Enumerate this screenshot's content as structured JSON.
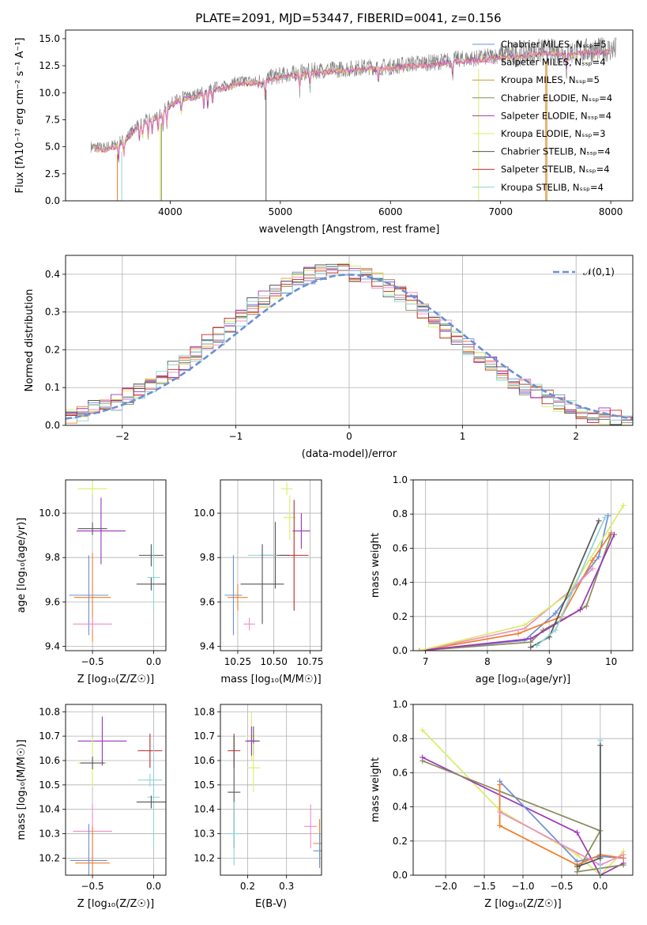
{
  "title": "PLATE=2091, MJD=53447, FIBERID=0041, z=0.156",
  "colors": [
    "#6b8fd6",
    "#f07e2a",
    "#f08cc4",
    "#c79a2b",
    "#8a8a5a",
    "#9b35b5",
    "#d9ec6a",
    "#555555",
    "#c0282a",
    "#8fd3d6"
  ],
  "panel_labels": {
    "spectrum_ylabel": "Flux [fλ10⁻¹⁷ erg cm⁻² s⁻¹ A⁻¹]",
    "spectrum_xlabel": "wavelength [Angstrom, rest frame]",
    "residual_ylabel": "Normed distribution",
    "residual_xlabel": "(data-model)/error",
    "age_ylabel": "age  [log₁₀(age/yr)]",
    "mass_ylabel": "mass [log₁₀(M/M☉)]",
    "z_xlabel": "Z [log₁₀(Z/Z☉)]",
    "mass_xlabel": "mass [log₁₀(M/M☉)]",
    "ebv_xlabel": "E(B-V)",
    "mw_ylabel": "mass weight",
    "mw_age_xlabel": "age  [log₁₀(age/yr)]",
    "mw_z_xlabel": "Z [log₁₀(Z/Z☉)]"
  },
  "chart_data": [
    {
      "id": "spectrum",
      "type": "line",
      "xlim": [
        3050,
        8200
      ],
      "ylim": [
        0,
        15.8
      ],
      "xticks": [
        4000,
        5000,
        6000,
        7000,
        8000
      ],
      "yticks": [
        0.0,
        2.5,
        5.0,
        7.5,
        10.0,
        12.5,
        15.0
      ],
      "legend_position": "right",
      "series": [
        {
          "name": "Chabrier MILES, N_SSP=5"
        },
        {
          "name": "Salpeter MILES, N_SSP=4"
        },
        {
          "name": "Kroupa MILES, N_SSP=5"
        },
        {
          "name": "Chabrier ELODIE, N_SSP=4"
        },
        {
          "name": "Salpeter ELODIE, N_SSP=4"
        },
        {
          "name": "Kroupa ELODIE, N_SSP=3"
        },
        {
          "name": "Chabrier STELIB, N_SSP=4"
        },
        {
          "name": "Salpeter STELIB, N_SSP=4"
        },
        {
          "name": "Kroupa STELIB, N_SSP=4"
        }
      ],
      "data_curve": {
        "x": [
          3280,
          3400,
          3500,
          3600,
          3700,
          3800,
          3900,
          4000,
          4100,
          4200,
          4300,
          4400,
          4500,
          4600,
          4700,
          4800,
          4900,
          5000,
          5200,
          5400,
          5600,
          5800,
          6000,
          6200,
          6400,
          6600,
          6800,
          7000,
          7200,
          7400,
          7600,
          7800,
          8000
        ],
        "y": [
          5.0,
          4.9,
          5.2,
          5.8,
          7.0,
          7.6,
          8.0,
          9.0,
          9.6,
          9.7,
          10.1,
          10.5,
          10.6,
          11.0,
          11.1,
          11.0,
          11.4,
          11.6,
          11.9,
          12.1,
          12.2,
          12.4,
          12.4,
          12.7,
          12.8,
          13.1,
          13.2,
          13.5,
          13.6,
          13.9,
          13.7,
          13.9,
          14.0
        ]
      }
    },
    {
      "id": "residuals",
      "type": "line",
      "xlim": [
        -2.5,
        2.5
      ],
      "ylim": [
        0,
        0.45
      ],
      "xticks": [
        -2,
        -1,
        0,
        1,
        2
      ],
      "yticks": [
        0.0,
        0.1,
        0.2,
        0.3,
        0.4
      ],
      "grid": true,
      "legend_label": "𝒩(0,1)",
      "legend_position": "top-right"
    },
    {
      "id": "age_vs_Z",
      "type": "scatter",
      "xlim": [
        -0.72,
        0.1
      ],
      "ylim": [
        9.38,
        10.15
      ],
      "xticks": [
        -0.5,
        0.0
      ],
      "yticks": [
        9.4,
        9.6,
        9.8,
        10.0
      ],
      "points": [
        {
          "x": -0.5,
          "y": 10.11,
          "xerr": 0.12,
          "yerr": 0.0,
          "c": 6
        },
        {
          "x": -0.5,
          "y": 9.93,
          "xerr": 0.12,
          "yerr": 0.0,
          "c": 7
        },
        {
          "x": -0.43,
          "y": 9.92,
          "xerr": 0.2,
          "yerr": 0.15,
          "c": 5
        },
        {
          "x": -0.53,
          "y": 9.63,
          "xerr": 0.16,
          "yerr": 0.18,
          "c": 0
        },
        {
          "x": -0.5,
          "y": 9.62,
          "xerr": 0.15,
          "yerr": 0.2,
          "c": 1
        },
        {
          "x": -0.5,
          "y": 9.5,
          "xerr": 0.16,
          "yerr": 0.0,
          "c": 2
        },
        {
          "x": -0.02,
          "y": 9.81,
          "xerr": 0.1,
          "yerr": 0.05,
          "c": 7
        },
        {
          "x": 0.0,
          "y": 9.71,
          "xerr": 0.0,
          "yerr": 0.15,
          "c": 9
        },
        {
          "x": -0.02,
          "y": 9.68,
          "xerr": 0.12,
          "yerr": 0.0,
          "c": 7
        }
      ]
    },
    {
      "id": "age_vs_mass",
      "type": "scatter",
      "xlim": [
        10.13,
        10.83
      ],
      "ylim": [
        9.38,
        10.15
      ],
      "xticks": [
        10.25,
        10.5,
        10.75
      ],
      "yticks": [
        9.4,
        9.6,
        9.8,
        10.0
      ],
      "points": [
        {
          "x": 10.59,
          "y": 10.11,
          "xerr": 0.04,
          "yerr": 0.0,
          "c": 6
        },
        {
          "x": 10.61,
          "y": 9.98,
          "xerr": 0.0,
          "yerr": 0.1,
          "c": 6
        },
        {
          "x": 10.69,
          "y": 9.92,
          "xerr": 0.06,
          "yerr": 0.08,
          "c": 5
        },
        {
          "x": 10.64,
          "y": 9.81,
          "xerr": 0.1,
          "yerr": 0.25,
          "c": 8
        },
        {
          "x": 10.51,
          "y": 9.81,
          "xerr": 0.1,
          "yerr": 0.15,
          "c": 7
        },
        {
          "x": 10.42,
          "y": 9.81,
          "xerr": 0.1,
          "yerr": 0.0,
          "c": 9
        },
        {
          "x": 10.42,
          "y": 9.68,
          "xerr": 0.15,
          "yerr": 0.18,
          "c": 7
        },
        {
          "x": 10.22,
          "y": 9.63,
          "xerr": 0.06,
          "yerr": 0.18,
          "c": 0
        },
        {
          "x": 10.25,
          "y": 9.62,
          "xerr": 0.07,
          "yerr": 0.06,
          "c": 1
        },
        {
          "x": 10.33,
          "y": 9.5,
          "xerr": 0.04,
          "yerr": 0.0,
          "c": 2
        }
      ]
    },
    {
      "id": "massweight_vs_age",
      "type": "line",
      "xlim": [
        6.8,
        10.35
      ],
      "ylim": [
        0,
        1
      ],
      "xticks": [
        7,
        8,
        9,
        10
      ],
      "yticks": [
        0.0,
        0.2,
        0.4,
        0.6,
        0.8,
        1.0
      ],
      "grid": true,
      "series": [
        {
          "x": [
            6.9,
            8.6,
            9.1,
            9.8,
            9.95
          ],
          "y": [
            0.0,
            0.06,
            0.22,
            0.55,
            0.79
          ],
          "c": 0
        },
        {
          "x": [
            6.9,
            8.5,
            9.2,
            9.7,
            10.0
          ],
          "y": [
            0.0,
            0.1,
            0.2,
            0.53,
            0.69
          ],
          "c": 1
        },
        {
          "x": [
            6.9,
            8.6,
            9.4,
            9.7
          ],
          "y": [
            0.0,
            0.13,
            0.37,
            0.48
          ],
          "c": 2
        },
        {
          "x": [
            6.9,
            8.7,
            8.9,
            9.6,
            10.0
          ],
          "y": [
            0.0,
            0.05,
            0.12,
            0.26,
            0.68
          ],
          "c": 4
        },
        {
          "x": [
            6.9,
            8.7,
            9.5,
            10.05
          ],
          "y": [
            0.0,
            0.07,
            0.24,
            0.68
          ],
          "c": 5
        },
        {
          "x": [
            6.9,
            8.6,
            9.3,
            10.2
          ],
          "y": [
            0.0,
            0.15,
            0.33,
            0.85
          ],
          "c": 6
        },
        {
          "x": [
            8.7,
            9.0,
            9.8
          ],
          "y": [
            0.02,
            0.08,
            0.76
          ],
          "c": 7
        },
        {
          "x": [
            8.8,
            9.1,
            9.9
          ],
          "y": [
            0.03,
            0.12,
            0.78
          ],
          "c": 9
        }
      ]
    },
    {
      "id": "mass_vs_Z",
      "type": "scatter",
      "xlim": [
        -0.72,
        0.1
      ],
      "ylim": [
        10.13,
        10.83
      ],
      "xticks": [
        -0.5,
        0.0
      ],
      "yticks": [
        10.2,
        10.3,
        10.4,
        10.5,
        10.6,
        10.7,
        10.8
      ],
      "points": [
        {
          "x": -0.42,
          "y": 10.68,
          "xerr": 0.2,
          "yerr": 0.1,
          "c": 5
        },
        {
          "x": -0.5,
          "y": 10.59,
          "xerr": 0.12,
          "yerr": 0.1,
          "c": 6
        },
        {
          "x": -0.5,
          "y": 10.59,
          "xerr": 0.1,
          "yerr": 0.0,
          "c": 7
        },
        {
          "x": -0.5,
          "y": 10.31,
          "xerr": 0.16,
          "yerr": 0.11,
          "c": 2
        },
        {
          "x": -0.53,
          "y": 10.19,
          "xerr": 0.15,
          "yerr": 0.15,
          "c": 0
        },
        {
          "x": -0.5,
          "y": 10.18,
          "xerr": 0.14,
          "yerr": 0.15,
          "c": 1
        },
        {
          "x": -0.03,
          "y": 10.64,
          "xerr": 0.1,
          "yerr": 0.07,
          "c": 8
        },
        {
          "x": -0.03,
          "y": 10.52,
          "xerr": 0.1,
          "yerr": 0.0,
          "c": 9
        },
        {
          "x": 0.0,
          "y": 10.45,
          "xerr": 0.0,
          "yerr": 0.21,
          "c": 9
        },
        {
          "x": -0.02,
          "y": 10.43,
          "xerr": 0.12,
          "yerr": 0.0,
          "c": 7
        }
      ]
    },
    {
      "id": "mass_vs_ebv",
      "type": "scatter",
      "xlim": [
        0.13,
        0.39
      ],
      "ylim": [
        10.13,
        10.83
      ],
      "xticks": [
        0.2,
        0.3
      ],
      "yticks": [
        10.2,
        10.3,
        10.4,
        10.5,
        10.6,
        10.7,
        10.8
      ],
      "points": [
        {
          "x": 0.21,
          "y": 10.7,
          "xerr": 0.0,
          "yerr": 0.1,
          "c": 6
        },
        {
          "x": 0.215,
          "y": 10.68,
          "xerr": 0.0,
          "yerr": 0.06,
          "c": 7
        },
        {
          "x": 0.21,
          "y": 10.68,
          "xerr": 0.0,
          "yerr": 0.06,
          "c": 5
        },
        {
          "x": 0.165,
          "y": 10.64,
          "xerr": 0.0,
          "yerr": 0.07,
          "c": 8
        },
        {
          "x": 0.215,
          "y": 10.57,
          "xerr": 0.0,
          "yerr": 0.1,
          "c": 6
        },
        {
          "x": 0.165,
          "y": 10.47,
          "xerr": 0.0,
          "yerr": 0.23,
          "c": 7
        },
        {
          "x": 0.165,
          "y": 10.3,
          "xerr": 0.0,
          "yerr": 0.13,
          "c": 9
        },
        {
          "x": 0.362,
          "y": 10.33,
          "xerr": 0.0,
          "yerr": 0.09,
          "c": 2
        },
        {
          "x": 0.385,
          "y": 10.26,
          "xerr": 0.0,
          "yerr": 0.1,
          "c": 1
        },
        {
          "x": 0.385,
          "y": 10.23,
          "xerr": 0.0,
          "yerr": 0.07,
          "c": 0
        }
      ]
    },
    {
      "id": "massweight_vs_Z",
      "type": "line",
      "xlim": [
        -2.42,
        0.42
      ],
      "ylim": [
        0,
        1
      ],
      "xticks": [
        -2.0,
        -1.5,
        -1.0,
        -0.5,
        0.0
      ],
      "yticks": [
        0.0,
        0.2,
        0.4,
        0.6,
        0.8,
        1.0
      ],
      "grid": true,
      "series": [
        {
          "x": [
            -2.3,
            -1.3,
            -0.3,
            0.0,
            0.3
          ],
          "y": [
            0.85,
            0.38,
            0.12,
            0.0,
            0.14
          ],
          "c": 6
        },
        {
          "x": [
            -2.3,
            -0.3,
            0.0,
            0.3
          ],
          "y": [
            0.69,
            0.25,
            0.0,
            0.07
          ],
          "c": 5
        },
        {
          "x": [
            -2.3,
            0.0,
            -0.3,
            0.3
          ],
          "y": [
            0.67,
            0.26,
            0.02,
            0.06
          ],
          "c": 4
        },
        {
          "x": [
            -1.3,
            -0.3,
            0.0,
            0.3
          ],
          "y": [
            0.55,
            0.08,
            0.11,
            0.1
          ],
          "c": 0
        },
        {
          "x": [
            -1.3,
            -1.3,
            -0.3,
            0.0,
            0.3
          ],
          "y": [
            0.53,
            0.29,
            0.06,
            0.12,
            0.1
          ],
          "c": 1
        },
        {
          "x": [
            -1.3,
            0.0,
            0.3
          ],
          "y": [
            0.37,
            0.06,
            0.12
          ],
          "c": 2
        },
        {
          "x": [
            0.0,
            0.0
          ],
          "y": [
            0.79,
            0.0
          ],
          "c": 9
        },
        {
          "x": [
            0.0,
            0.0,
            -0.3
          ],
          "y": [
            0.76,
            0.1,
            0.05
          ],
          "c": 7
        }
      ]
    }
  ]
}
